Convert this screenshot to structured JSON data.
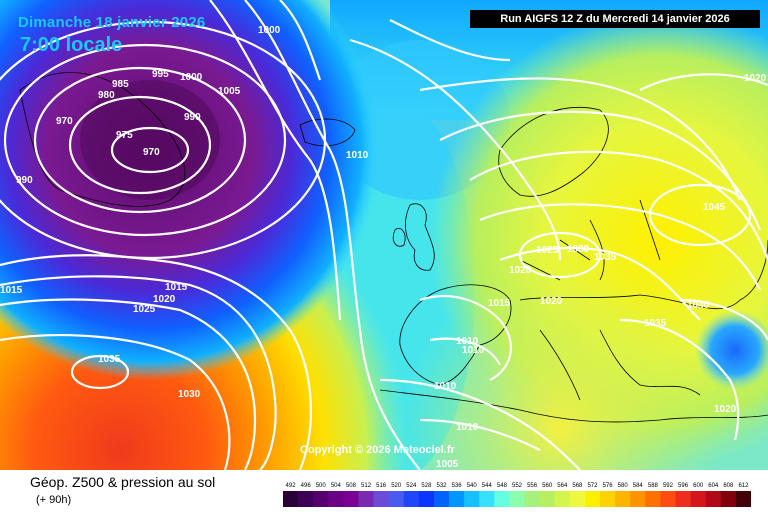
{
  "header": {
    "date_line": "Dimanche 18 janvier 2026",
    "time_line": "7:00 locale",
    "run_info": "Run AIGFS 12 Z du Mercredi 14 janvier 2026"
  },
  "copyright": "Copyright © 2026 Meteociel.fr",
  "legend": {
    "title": "Géop. Z500 & pression au sol",
    "subtitle": "(+ 90h)",
    "scale_values": [
      "492",
      "496",
      "500",
      "504",
      "508",
      "512",
      "516",
      "520",
      "524",
      "528",
      "532",
      "536",
      "540",
      "544",
      "548",
      "552",
      "556",
      "560",
      "564",
      "568",
      "572",
      "576",
      "580",
      "584",
      "588",
      "592",
      "596",
      "600",
      "604",
      "608",
      "612"
    ],
    "scale_colors": [
      "#2a0038",
      "#3e0056",
      "#560070",
      "#6a0086",
      "#7a0094",
      "#7a2ab0",
      "#6c4cd6",
      "#4a5cf0",
      "#2046f8",
      "#0a36ff",
      "#0062ff",
      "#0096ff",
      "#16c0ff",
      "#38e0ff",
      "#64ffe0",
      "#8cffae",
      "#a6f07c",
      "#b8ef5e",
      "#d4f64c",
      "#eef83e",
      "#fff000",
      "#ffd200",
      "#ffb400",
      "#ff9400",
      "#ff7000",
      "#ff4c10",
      "#f02c1c",
      "#d4161c",
      "#b00a18",
      "#80000e",
      "#400006"
    ]
  },
  "isobar_labels": [
    "1000",
    "995",
    "1000",
    "1005",
    "985",
    "980",
    "970",
    "975",
    "990",
    "970",
    "990",
    "1010",
    "1020",
    "1045",
    "1025",
    "1030",
    "1035",
    "1020",
    "1015",
    "1020",
    "1040",
    "1015",
    "1020",
    "1025",
    "1015",
    "1035",
    "1010",
    "1010",
    "1035",
    "1030",
    "1010",
    "1020",
    "1010",
    "1005"
  ],
  "colors": {
    "isobar": "#ffffff",
    "coastline": "#000000",
    "title_text": "#19c8ff"
  }
}
